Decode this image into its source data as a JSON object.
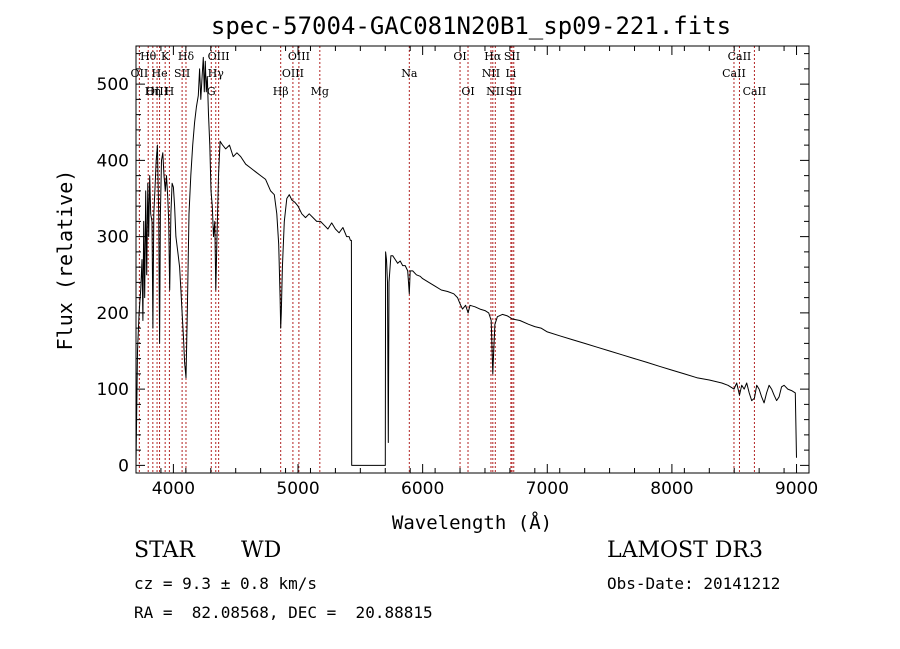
{
  "chart_data": {
    "type": "line",
    "title": "spec-57004-GAC081N20B1_sp09-221.fits",
    "xlabel": "Wavelength (Å)",
    "ylabel": "Flux (relative)",
    "xlim": [
      3700,
      9100
    ],
    "ylim": [
      -10,
      550
    ],
    "x_ticks": [
      4000,
      5000,
      6000,
      7000,
      8000,
      9000
    ],
    "y_ticks": [
      0,
      100,
      200,
      300,
      400,
      500
    ],
    "grid": false,
    "line_color": "#000000",
    "marker_color": "#b22222",
    "series": [
      {
        "name": "spectrum",
        "points": [
          [
            3700,
            0
          ],
          [
            3712,
            150
          ],
          [
            3725,
            200
          ],
          [
            3738,
            230
          ],
          [
            3748,
            270
          ],
          [
            3755,
            190
          ],
          [
            3762,
            320
          ],
          [
            3770,
            220
          ],
          [
            3778,
            360
          ],
          [
            3786,
            250
          ],
          [
            3795,
            370
          ],
          [
            3802,
            300
          ],
          [
            3810,
            380
          ],
          [
            3818,
            330
          ],
          [
            3828,
            320
          ],
          [
            3836,
            180
          ],
          [
            3843,
            330
          ],
          [
            3852,
            360
          ],
          [
            3862,
            400
          ],
          [
            3872,
            420
          ],
          [
            3882,
            330
          ],
          [
            3889,
            160
          ],
          [
            3896,
            330
          ],
          [
            3905,
            400
          ],
          [
            3915,
            410
          ],
          [
            3925,
            380
          ],
          [
            3935,
            360
          ],
          [
            3945,
            380
          ],
          [
            3955,
            350
          ],
          [
            3962,
            320
          ],
          [
            3970,
            230
          ],
          [
            3980,
            330
          ],
          [
            3990,
            370
          ],
          [
            4000,
            365
          ],
          [
            4010,
            340
          ],
          [
            4020,
            300
          ],
          [
            4035,
            280
          ],
          [
            4050,
            260
          ],
          [
            4060,
            230
          ],
          [
            4070,
            200
          ],
          [
            4080,
            170
          ],
          [
            4090,
            135
          ],
          [
            4101,
            115
          ],
          [
            4112,
            200
          ],
          [
            4125,
            330
          ],
          [
            4140,
            380
          ],
          [
            4155,
            420
          ],
          [
            4170,
            450
          ],
          [
            4185,
            470
          ],
          [
            4200,
            485
          ],
          [
            4210,
            520
          ],
          [
            4220,
            480
          ],
          [
            4230,
            510
          ],
          [
            4240,
            535
          ],
          [
            4248,
            490
          ],
          [
            4256,
            530
          ],
          [
            4264,
            490
          ],
          [
            4272,
            510
          ],
          [
            4282,
            460
          ],
          [
            4292,
            420
          ],
          [
            4302,
            360
          ],
          [
            4312,
            340
          ],
          [
            4322,
            300
          ],
          [
            4332,
            320
          ],
          [
            4340,
            230
          ],
          [
            4350,
            300
          ],
          [
            4362,
            380
          ],
          [
            4375,
            425
          ],
          [
            4395,
            420
          ],
          [
            4420,
            415
          ],
          [
            4450,
            420
          ],
          [
            4480,
            405
          ],
          [
            4510,
            410
          ],
          [
            4540,
            405
          ],
          [
            4580,
            395
          ],
          [
            4620,
            390
          ],
          [
            4660,
            385
          ],
          [
            4700,
            380
          ],
          [
            4740,
            375
          ],
          [
            4780,
            360
          ],
          [
            4810,
            355
          ],
          [
            4830,
            330
          ],
          [
            4845,
            290
          ],
          [
            4856,
            220
          ],
          [
            4861,
            180
          ],
          [
            4866,
            200
          ],
          [
            4875,
            260
          ],
          [
            4890,
            320
          ],
          [
            4910,
            350
          ],
          [
            4930,
            355
          ],
          [
            4950,
            348
          ],
          [
            4975,
            345
          ],
          [
            5000,
            340
          ],
          [
            5030,
            330
          ],
          [
            5060,
            325
          ],
          [
            5090,
            330
          ],
          [
            5120,
            325
          ],
          [
            5150,
            320
          ],
          [
            5180,
            320
          ],
          [
            5210,
            315
          ],
          [
            5240,
            310
          ],
          [
            5270,
            318
          ],
          [
            5300,
            310
          ],
          [
            5330,
            305
          ],
          [
            5360,
            312
          ],
          [
            5390,
            300
          ],
          [
            5410,
            300
          ],
          [
            5420,
            295
          ],
          [
            5428,
            295
          ],
          [
            5431,
            0
          ],
          [
            5460,
            0
          ],
          [
            5500,
            0
          ],
          [
            5550,
            0
          ],
          [
            5600,
            0
          ],
          [
            5650,
            0
          ],
          [
            5700,
            0
          ],
          [
            5703,
            280
          ],
          [
            5710,
            270
          ],
          [
            5718,
            240
          ],
          [
            5724,
            30
          ],
          [
            5730,
            240
          ],
          [
            5745,
            275
          ],
          [
            5760,
            275
          ],
          [
            5780,
            270
          ],
          [
            5800,
            265
          ],
          [
            5820,
            268
          ],
          [
            5840,
            262
          ],
          [
            5860,
            262
          ],
          [
            5880,
            255
          ],
          [
            5893,
            225
          ],
          [
            5900,
            255
          ],
          [
            5920,
            255
          ],
          [
            5950,
            250
          ],
          [
            5980,
            248
          ],
          [
            6000,
            245
          ],
          [
            6050,
            240
          ],
          [
            6100,
            235
          ],
          [
            6150,
            230
          ],
          [
            6200,
            228
          ],
          [
            6250,
            225
          ],
          [
            6280,
            220
          ],
          [
            6300,
            212
          ],
          [
            6320,
            205
          ],
          [
            6345,
            210
          ],
          [
            6365,
            200
          ],
          [
            6380,
            210
          ],
          [
            6420,
            208
          ],
          [
            6460,
            205
          ],
          [
            6500,
            203
          ],
          [
            6530,
            200
          ],
          [
            6550,
            190
          ],
          [
            6557,
            150
          ],
          [
            6563,
            120
          ],
          [
            6570,
            150
          ],
          [
            6580,
            185
          ],
          [
            6600,
            195
          ],
          [
            6640,
            198
          ],
          [
            6680,
            196
          ],
          [
            6720,
            192
          ],
          [
            6780,
            190
          ],
          [
            6850,
            185
          ],
          [
            6900,
            182
          ],
          [
            6950,
            180
          ],
          [
            7000,
            175
          ],
          [
            7100,
            170
          ],
          [
            7200,
            165
          ],
          [
            7300,
            160
          ],
          [
            7400,
            155
          ],
          [
            7500,
            150
          ],
          [
            7600,
            145
          ],
          [
            7700,
            140
          ],
          [
            7800,
            135
          ],
          [
            7900,
            130
          ],
          [
            8000,
            125
          ],
          [
            8100,
            120
          ],
          [
            8200,
            115
          ],
          [
            8300,
            112
          ],
          [
            8400,
            108
          ],
          [
            8450,
            105
          ],
          [
            8498,
            100
          ],
          [
            8520,
            108
          ],
          [
            8542,
            92
          ],
          [
            8560,
            105
          ],
          [
            8580,
            100
          ],
          [
            8600,
            108
          ],
          [
            8620,
            95
          ],
          [
            8640,
            85
          ],
          [
            8662,
            88
          ],
          [
            8680,
            105
          ],
          [
            8700,
            100
          ],
          [
            8720,
            90
          ],
          [
            8740,
            82
          ],
          [
            8760,
            95
          ],
          [
            8780,
            105
          ],
          [
            8800,
            100
          ],
          [
            8820,
            92
          ],
          [
            8840,
            85
          ],
          [
            8860,
            90
          ],
          [
            8880,
            103
          ],
          [
            8900,
            105
          ],
          [
            8930,
            100
          ],
          [
            8960,
            98
          ],
          [
            8990,
            95
          ],
          [
            9000,
            10
          ]
        ]
      }
    ],
    "line_markers": [
      {
        "label": "Hθ",
        "x": 3798,
        "row": 1
      },
      {
        "label": "OII",
        "x": 3727,
        "row": 2
      },
      {
        "label": "OIII",
        "x": 3869,
        "row": 3
      },
      {
        "label": "He",
        "x": 3889,
        "row": 2
      },
      {
        "label": "Hη",
        "x": 3835,
        "row": 3
      },
      {
        "label": "K",
        "x": 3934,
        "row": 1
      },
      {
        "label": "H",
        "x": 3968,
        "row": 3
      },
      {
        "label": "SII",
        "x": 4070,
        "row": 2
      },
      {
        "label": "Hδ",
        "x": 4101,
        "row": 1
      },
      {
        "label": "OIII",
        "x": 4363,
        "row": 1
      },
      {
        "label": "Hγ",
        "x": 4340,
        "row": 2
      },
      {
        "label": "G",
        "x": 4304,
        "row": 3
      },
      {
        "label": "Hβ",
        "x": 4861,
        "row": 3
      },
      {
        "label": "OIII",
        "x": 5007,
        "row": 1
      },
      {
        "label": "OIII",
        "x": 4959,
        "row": 2
      },
      {
        "label": "Mg",
        "x": 5175,
        "row": 3
      },
      {
        "label": "Na",
        "x": 5893,
        "row": 2
      },
      {
        "label": "OI",
        "x": 6300,
        "row": 1
      },
      {
        "label": "OI",
        "x": 6364,
        "row": 3
      },
      {
        "label": "Hα",
        "x": 6563,
        "row": 1
      },
      {
        "label": "NII",
        "x": 6548,
        "row": 2
      },
      {
        "label": "NII",
        "x": 6583,
        "row": 3
      },
      {
        "label": "SII",
        "x": 6717,
        "row": 1
      },
      {
        "label": "Li",
        "x": 6708,
        "row": 2
      },
      {
        "label": "SII",
        "x": 6731,
        "row": 3
      },
      {
        "label": "CaII",
        "x": 8542,
        "row": 1
      },
      {
        "label": "CaII",
        "x": 8498,
        "row": 2
      },
      {
        "label": "CaII",
        "x": 8662,
        "row": 3
      }
    ]
  },
  "info": {
    "class_label": "STAR",
    "subclass_label": "WD",
    "survey": "LAMOST DR3",
    "redshift": "cz = 9.3 ± 0.8 km/s",
    "obs_date": "Obs-Date: 20141212",
    "coords": "RA =  82.08568, DEC =  20.88815"
  }
}
